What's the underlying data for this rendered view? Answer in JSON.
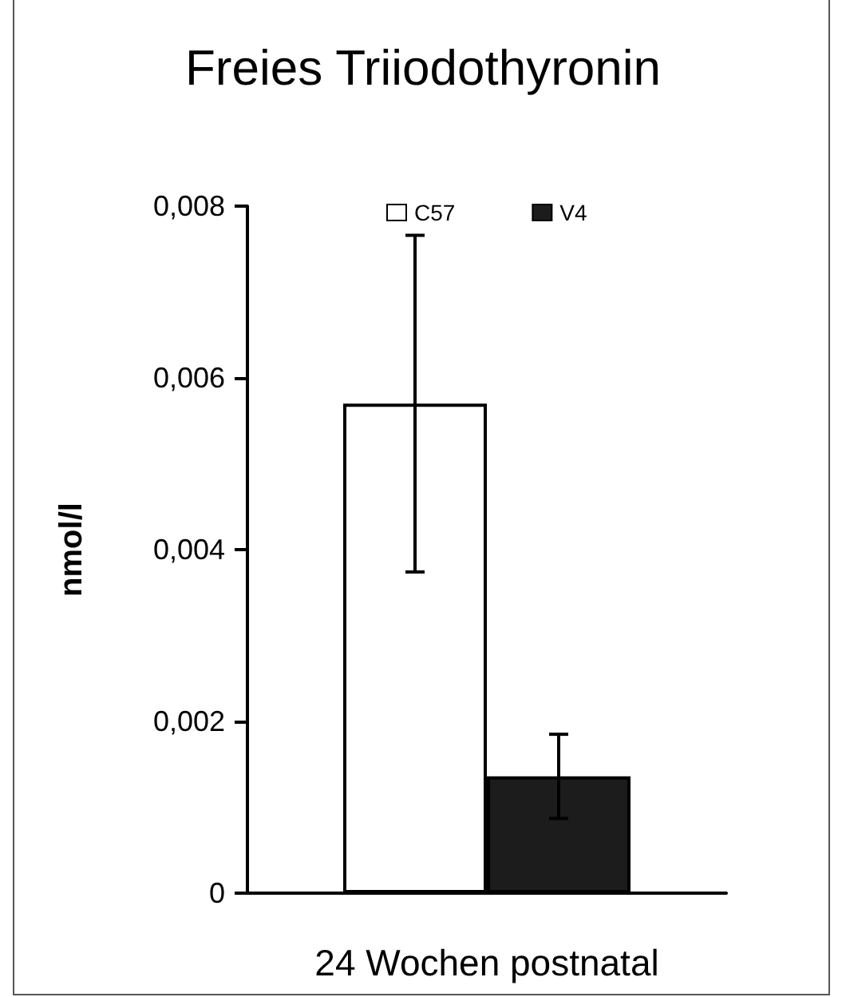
{
  "chart_data": {
    "type": "bar",
    "title": "Freies Triiodothyronin",
    "xlabel": "24 Wochen postnatal",
    "ylabel": "nmol/l",
    "categories": [
      null
    ],
    "series": [
      {
        "name": "C57",
        "color": "#ffffff",
        "values": [
          0.0057
        ],
        "errors": [
          0.00196
        ]
      },
      {
        "name": "V4",
        "color": "#1c1c1c",
        "values": [
          0.00136
        ],
        "errors": [
          0.00049
        ]
      }
    ],
    "ylim": [
      0,
      0.008
    ],
    "yticks": [
      {
        "value": 0,
        "label": "0"
      },
      {
        "value": 0.002,
        "label": "0,002"
      },
      {
        "value": 0.004,
        "label": "0,004"
      },
      {
        "value": 0.006,
        "label": "0,006"
      },
      {
        "value": 0.008,
        "label": "0,008"
      }
    ],
    "grid": false,
    "legend": "top"
  }
}
